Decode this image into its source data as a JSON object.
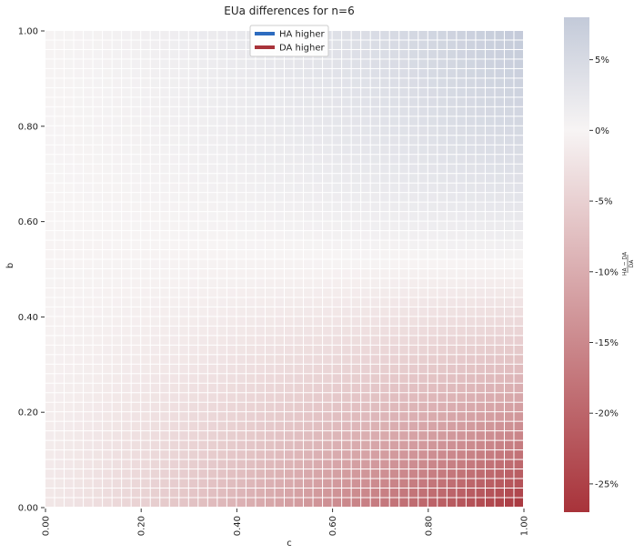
{
  "chart_data": {
    "type": "heatmap",
    "title": "EUa differences for n=6",
    "xlabel": "c",
    "ylabel": "b",
    "x_ticks": [
      "0.00",
      "0.20",
      "0.40",
      "0.60",
      "0.80",
      "1.00"
    ],
    "y_ticks": [
      "0.00",
      "0.20",
      "0.40",
      "0.60",
      "0.80",
      "1.00"
    ],
    "xlim": [
      0,
      1
    ],
    "ylim": [
      0,
      1
    ],
    "grid": false,
    "colorbar": {
      "label": "(HA − DA) / DA",
      "label_numerator": "HA − DA",
      "label_denominator": "DA",
      "ticks": [
        "5%",
        "0%",
        "-5%",
        "-10%",
        "-15%",
        "-20%",
        "-25%"
      ],
      "tick_values": [
        5,
        0,
        -5,
        -10,
        -15,
        -20,
        -25
      ],
      "range": [
        -27,
        8
      ],
      "colormap": "vlag_r",
      "low_color": "#a8333a",
      "mid_color": "#f7f4f4",
      "high_color": "#c3cad9"
    },
    "legend": {
      "position": "top-center",
      "entries": [
        {
          "label": "HA higher",
          "color": "#2c6bbf"
        },
        {
          "label": "DA higher",
          "color": "#a8333a"
        }
      ]
    },
    "series_description": "Values (percent) grid over c in [0,1] and b in [0,1], approximated by corner values",
    "corner_values": {
      "c0_b0": -2,
      "c1_b0": -27,
      "c0_b1": 0.2,
      "c1_b1": 8
    }
  }
}
